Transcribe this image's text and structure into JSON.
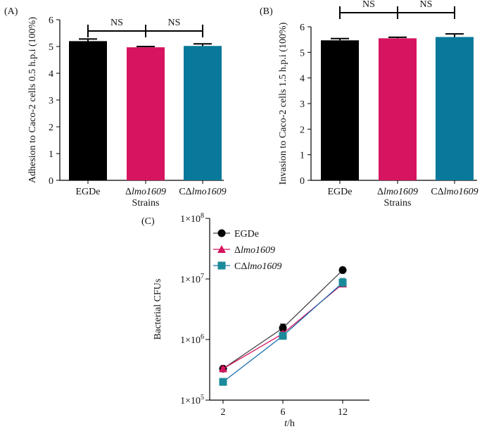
{
  "chart_data": [
    {
      "type": "bar",
      "panel_label": "(A)",
      "categories": [
        "EGDe",
        "Δlmo1609",
        "CΔlmo1609"
      ],
      "category_parts": [
        [
          "EGDe",
          ""
        ],
        [
          "Δ",
          "lmo1609"
        ],
        [
          "CΔ",
          "lmo1609"
        ]
      ],
      "values": [
        5.2,
        4.97,
        5.02
      ],
      "errors": [
        0.08,
        0.03,
        0.08
      ],
      "colors": [
        "#000000",
        "#d6145f",
        "#08799a"
      ],
      "xlabel": "Strains",
      "ylabel": "Adhesion to Caco-2 cells 0.5 h.p.i (100%)",
      "ylim": [
        0,
        6
      ],
      "yticks": [
        "0",
        "1",
        "2",
        "3",
        "4",
        "5",
        "6"
      ],
      "significance": {
        "label": "NS",
        "comparisons": [
          "EGDe vs Δlmo1609",
          "Δlmo1609 vs CΔlmo1609"
        ]
      }
    },
    {
      "type": "bar",
      "panel_label": "(B)",
      "categories": [
        "EGDe",
        "Δlmo1609",
        "CΔlmo1609"
      ],
      "category_parts": [
        [
          "EGDe",
          ""
        ],
        [
          "Δ",
          "lmo1609"
        ],
        [
          "CΔ",
          "lmo1609"
        ]
      ],
      "values": [
        5.47,
        5.55,
        5.6
      ],
      "errors": [
        0.07,
        0.04,
        0.12
      ],
      "colors": [
        "#000000",
        "#d6145f",
        "#08799a"
      ],
      "xlabel": "Strains",
      "ylabel": "Invasion to Caco-2 cells 1.5 h.p.i (100%)",
      "ylim": [
        0,
        6
      ],
      "yticks": [
        "0",
        "1",
        "2",
        "3",
        "4",
        "5",
        "6"
      ],
      "significance": {
        "label": "NS",
        "comparisons": [
          "EGDe vs Δlmo1609",
          "Δlmo1609 vs CΔlmo1609"
        ]
      }
    },
    {
      "type": "line",
      "panel_label": "(C)",
      "x": [
        2,
        6,
        12
      ],
      "xticks": [
        "2",
        "6",
        "12"
      ],
      "xlabel_parts": [
        "t",
        "/h"
      ],
      "ylabel": "Bacterial CFUs",
      "yscale": "log",
      "ylim": [
        100000,
        100000000
      ],
      "yticks": [
        {
          "base": "1×10",
          "exp": "5"
        },
        {
          "base": "1×10",
          "exp": "6"
        },
        {
          "base": "1×10",
          "exp": "7"
        },
        {
          "base": "1×10",
          "exp": "8"
        }
      ],
      "legend_position": "top-left",
      "series": [
        {
          "name": "EGDe",
          "name_parts": [
            "EGDe",
            ""
          ],
          "marker": "circle",
          "color": "#000000",
          "line_color": "#444444",
          "values": [
            330000,
            1550000,
            14000000
          ],
          "errors": [
            20000,
            250000,
            600000
          ]
        },
        {
          "name": "Δlmo1609",
          "name_parts": [
            "Δ",
            "lmo1609"
          ],
          "marker": "triangle",
          "color": "#d6145f",
          "line_color": "#d6145f",
          "values": [
            330000,
            1250000,
            8300000
          ],
          "errors": [
            20000,
            100000,
            900000
          ]
        },
        {
          "name": "CΔlmo1609",
          "name_parts": [
            "CΔ",
            "lmo1609"
          ],
          "marker": "square",
          "color": "#1b8a9a",
          "line_color": "#1b6fb0",
          "values": [
            200000,
            1150000,
            8700000
          ],
          "errors": [
            10000,
            100000,
            1500000
          ]
        }
      ]
    }
  ]
}
